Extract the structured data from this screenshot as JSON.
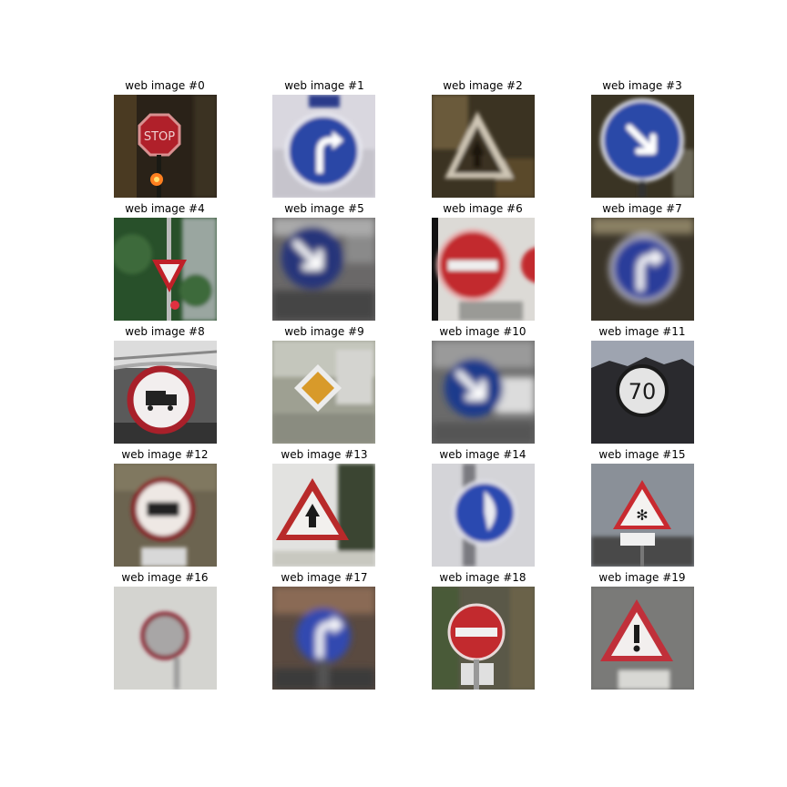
{
  "grid": {
    "images": [
      {
        "title": "web image #0",
        "scene": "stop"
      },
      {
        "title": "web image #1",
        "scene": "blue-turn-light"
      },
      {
        "title": "web image #2",
        "scene": "warn-dark"
      },
      {
        "title": "web image #3",
        "scene": "blue-keep-right"
      },
      {
        "title": "web image #4",
        "scene": "yield-trees"
      },
      {
        "title": "web image #5",
        "scene": "blue-keep-right-blurry"
      },
      {
        "title": "web image #6",
        "scene": "no-entry-close"
      },
      {
        "title": "web image #7",
        "scene": "blue-turn-dark"
      },
      {
        "title": "web image #8",
        "scene": "no-trucks"
      },
      {
        "title": "web image #9",
        "scene": "priority-road"
      },
      {
        "title": "web image #10",
        "scene": "blue-keep-right-2"
      },
      {
        "title": "web image #11",
        "scene": "speed-70"
      },
      {
        "title": "web image #12",
        "scene": "no-trucks-2"
      },
      {
        "title": "web image #13",
        "scene": "warn-pedestrian"
      },
      {
        "title": "web image #14",
        "scene": "blue-sign-pole"
      },
      {
        "title": "web image #15",
        "scene": "warn-snow"
      },
      {
        "title": "web image #16",
        "scene": "no-vehicles"
      },
      {
        "title": "web image #17",
        "scene": "blue-turn-blurry"
      },
      {
        "title": "web image #18",
        "scene": "no-entry"
      },
      {
        "title": "web image #19",
        "scene": "warn-general"
      }
    ]
  }
}
